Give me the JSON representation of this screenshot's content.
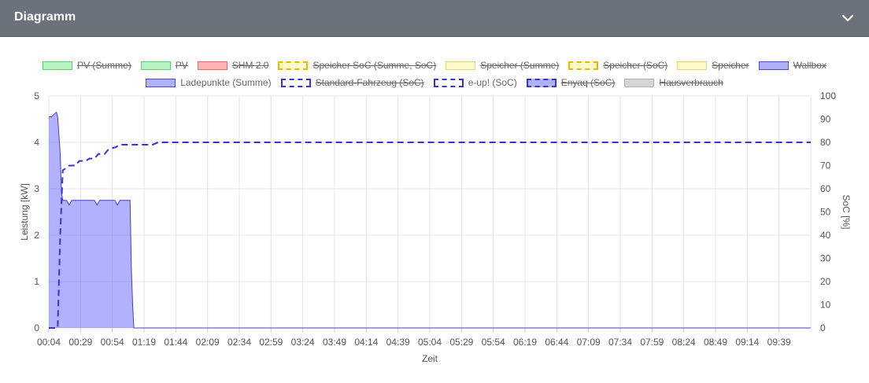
{
  "header": {
    "title": "Diagramm"
  },
  "icons": {
    "collapse": "chevron-down-icon"
  },
  "colors": {
    "header_bg": "#6b727c",
    "wallbox_fill": "rgba(100,100,255,0.5)",
    "wallbox_line": "#4040d0",
    "soc_line": "#3434d6"
  },
  "legend": {
    "row1": [
      {
        "label": "PV (Summe)",
        "fill": "#b7f3c0",
        "stroke": "#5fce73",
        "dashed": false,
        "hidden": true
      },
      {
        "label": "PV",
        "fill": "#b7f3c0",
        "stroke": "#5fce73",
        "dashed": false,
        "hidden": true
      },
      {
        "label": "SHM 2.0",
        "fill": "#ffb3b3",
        "stroke": "#e36a6a",
        "dashed": false,
        "hidden": true
      },
      {
        "label": "Speicher SoC (Summe, SoC)",
        "fill": "#fff9c8",
        "stroke": "#e6b800",
        "dashed": true,
        "hidden": true
      },
      {
        "label": "Speicher (Summe)",
        "fill": "#fff9c8",
        "stroke": "#e0d27a",
        "dashed": false,
        "hidden": true
      },
      {
        "label": "Speicher (SoC)",
        "fill": "#fff9c8",
        "stroke": "#e6b800",
        "dashed": true,
        "hidden": true
      },
      {
        "label": "Speicher",
        "fill": "#fff9c8",
        "stroke": "#e0d27a",
        "dashed": false,
        "hidden": true
      },
      {
        "label": "Wallbox",
        "fill": "#b1b1f7",
        "stroke": "#4a4ad6",
        "dashed": false,
        "hidden": true
      }
    ],
    "row2": [
      {
        "label": "Ladepunkte (Summe)",
        "fill": "#b1b1f7",
        "stroke": "#4a4ad6",
        "dashed": false,
        "hidden": false
      },
      {
        "label": "Standard-Fahrzeug (SoC)",
        "fill": "#ffffff",
        "stroke": "#3434d6",
        "dashed": true,
        "hidden": true
      },
      {
        "label": "e-up! (SoC)",
        "fill": "#ffffff",
        "stroke": "#3434d6",
        "dashed": true,
        "hidden": false
      },
      {
        "label": "Enyaq (SoC)",
        "fill": "#b1b1f7",
        "stroke": "#3434d6",
        "dashed": true,
        "hidden": true
      },
      {
        "label": "Hausverbrauch",
        "fill": "#d6d6d6",
        "stroke": "#b0b0b0",
        "dashed": false,
        "hidden": true
      }
    ]
  },
  "chart_data": {
    "type": "area",
    "xlabel": "Zeit",
    "ylabel": "Leistung [kW]",
    "y2label": "SoC [%]",
    "x_ticks": [
      "00:04",
      "00:29",
      "00:54",
      "01:19",
      "01:44",
      "02:09",
      "02:34",
      "02:59",
      "03:24",
      "03:49",
      "04:14",
      "04:39",
      "05:04",
      "05:29",
      "05:54",
      "06:19",
      "06:44",
      "07:09",
      "07:34",
      "07:59",
      "08:24",
      "08:49",
      "09:14",
      "09:39"
    ],
    "x_range_min": [
      4,
      604
    ],
    "ylim": [
      0,
      5
    ],
    "y_ticks": [
      "0",
      "1",
      "2",
      "3",
      "4",
      "5"
    ],
    "y2lim": [
      0,
      100
    ],
    "y2_ticks": [
      "0",
      "10",
      "20",
      "30",
      "40",
      "50",
      "60",
      "70",
      "80",
      "90",
      "100"
    ],
    "grid": true,
    "legend_position": "top",
    "series": [
      {
        "name": "Ladepunkte (Summe)",
        "axis": "left",
        "style": "area",
        "points": [
          [
            4,
            4.55
          ],
          [
            6,
            4.55
          ],
          [
            8,
            4.6
          ],
          [
            10,
            4.65
          ],
          [
            11,
            4.55
          ],
          [
            13,
            3.75
          ],
          [
            14,
            2.9
          ],
          [
            15,
            2.75
          ],
          [
            18,
            2.75
          ],
          [
            20,
            2.65
          ],
          [
            22,
            2.75
          ],
          [
            40,
            2.75
          ],
          [
            42,
            2.65
          ],
          [
            44,
            2.75
          ],
          [
            56,
            2.75
          ],
          [
            58,
            2.65
          ],
          [
            60,
            2.75
          ],
          [
            68,
            2.75
          ],
          [
            69,
            1.3
          ],
          [
            70,
            0.5
          ],
          [
            71,
            0
          ],
          [
            604,
            0
          ]
        ]
      },
      {
        "name": "e-up! (SoC)",
        "axis": "right",
        "style": "dashed",
        "points": [
          [
            4,
            0
          ],
          [
            11,
            0
          ],
          [
            13,
            40
          ],
          [
            15,
            68
          ],
          [
            18,
            69
          ],
          [
            20,
            70
          ],
          [
            25,
            70
          ],
          [
            28,
            72
          ],
          [
            33,
            72
          ],
          [
            36,
            73
          ],
          [
            40,
            73
          ],
          [
            43,
            75
          ],
          [
            48,
            75
          ],
          [
            51,
            77
          ],
          [
            57,
            78
          ],
          [
            60,
            79
          ],
          [
            65,
            79
          ],
          [
            68,
            79
          ],
          [
            86,
            79
          ],
          [
            90,
            80
          ],
          [
            604,
            80
          ]
        ]
      }
    ]
  }
}
